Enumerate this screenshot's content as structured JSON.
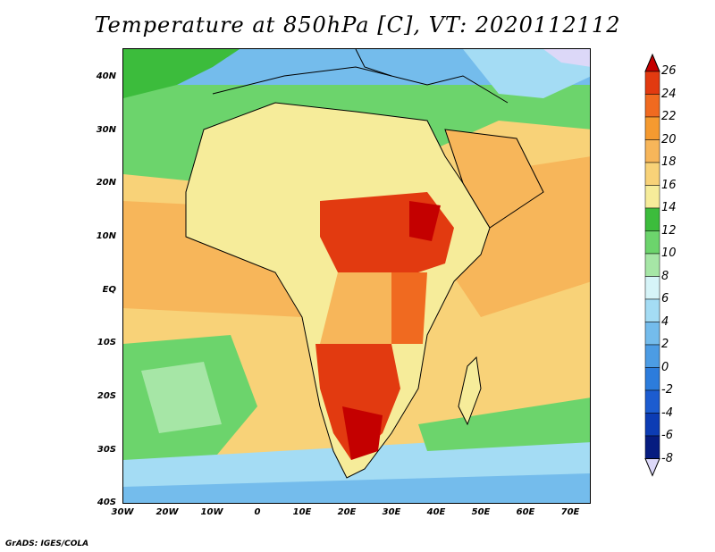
{
  "title": "Temperature at 850hPa [C], VT: 2020112112",
  "credit": "GrADS: IGES/COLA",
  "lat_labels": [
    "40N",
    "30N",
    "20N",
    "10N",
    "EQ",
    "10S",
    "20S",
    "30S",
    "40S"
  ],
  "lon_labels": [
    "30W",
    "20W",
    "10W",
    "0",
    "10E",
    "20E",
    "30E",
    "40E",
    "50E",
    "60E",
    "70E"
  ],
  "colorbar": {
    "labels": [
      "26",
      "24",
      "22",
      "20",
      "18",
      "16",
      "14",
      "12",
      "10",
      "8",
      "6",
      "4",
      "2",
      "0",
      "-2",
      "-4",
      "-6",
      "-8"
    ],
    "colors": [
      "#c40000",
      "#e23a10",
      "#f06a20",
      "#f59a30",
      "#f7b65a",
      "#f8d278",
      "#f6ec9a",
      "#3cbc3c",
      "#6cd46c",
      "#a6e6a6",
      "#d6f4f8",
      "#a4dcf4",
      "#74bcec",
      "#4c9ce4",
      "#2c7cdc",
      "#1c5cd0",
      "#0c3cb4",
      "#061c80",
      "#dcd8f8"
    ]
  },
  "map_colors": {
    "ocean_warm": "#f7b65a",
    "ocean_mid": "#f8d278",
    "cool_south": "#74bcec",
    "green": "#6cd46c",
    "hot": "#e23a10",
    "hottest": "#c40000"
  }
}
